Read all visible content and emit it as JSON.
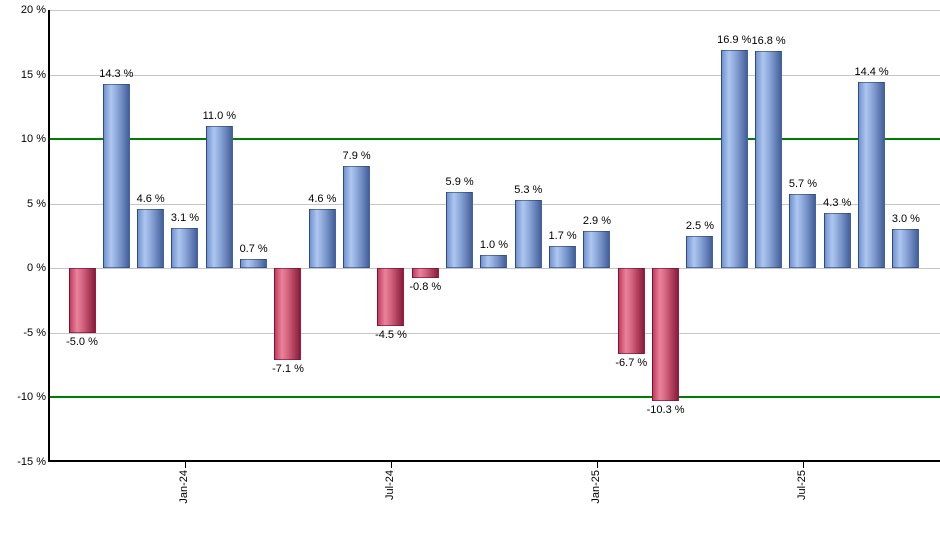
{
  "chart_data": {
    "type": "bar",
    "title": "",
    "xlabel": "",
    "ylabel": "",
    "ylim": [
      -15,
      20
    ],
    "grid": true,
    "legend_position": "none",
    "y_ticks": [
      {
        "label": "20 %",
        "value": 20
      },
      {
        "label": "15 %",
        "value": 15
      },
      {
        "label": "10 %",
        "value": 10
      },
      {
        "label": "5 %",
        "value": 5
      },
      {
        "label": "0 %",
        "value": 0
      },
      {
        "label": "-5 %",
        "value": -5
      },
      {
        "label": "-10 %",
        "value": -10
      },
      {
        "label": "-15 %",
        "value": -15
      }
    ],
    "highlight_gridlines": [
      10,
      -10
    ],
    "x_ticks": [
      {
        "label": "Jan-24",
        "bar_index": 3
      },
      {
        "label": "Jul-24",
        "bar_index": 9
      },
      {
        "label": "Jan-25",
        "bar_index": 15
      },
      {
        "label": "Jul-25",
        "bar_index": 21
      }
    ],
    "values": [
      -5.0,
      14.3,
      4.6,
      3.1,
      11.0,
      0.7,
      -7.1,
      4.6,
      7.9,
      -4.5,
      -0.8,
      5.9,
      1.0,
      5.3,
      1.7,
      2.9,
      -6.7,
      -10.3,
      2.5,
      16.9,
      16.8,
      5.7,
      4.3,
      14.4,
      3.0
    ],
    "bar_labels": [
      "-5.0 %",
      "14.3 %",
      "4.6 %",
      "3.1 %",
      "11.0 %",
      "0.7 %",
      "-7.1 %",
      "4.6 %",
      "7.9 %",
      "-4.5 %",
      "-0.8 %",
      "5.9 %",
      "1.0 %",
      "5.3 %",
      "1.7 %",
      "2.9 %",
      "-6.7 %",
      "-10.3 %",
      "2.5 %",
      "16.9 %",
      "16.8 %",
      "5.7 %",
      "4.3 %",
      "14.4 %",
      "3.0 %"
    ],
    "colors": {
      "positive_main": "#7193d0",
      "positive_light": "#afc7ef",
      "positive_dark": "#44609c",
      "negative_main": "#c43c60",
      "negative_light": "#e8839b",
      "negative_dark": "#8a1b3b",
      "gridline": "#c6c6c6",
      "gridline_highlight": "#007c00",
      "axis": "#000000",
      "text": "#000000"
    }
  }
}
